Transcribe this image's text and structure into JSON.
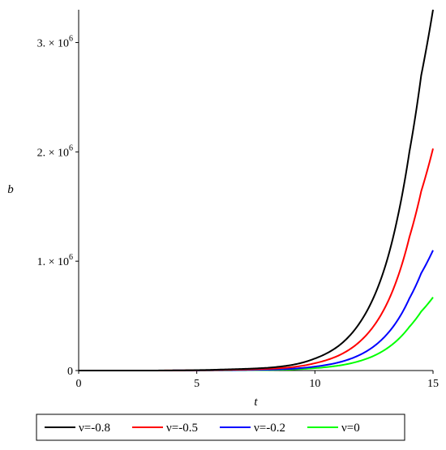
{
  "chart_data": {
    "type": "line",
    "xlabel": "t",
    "ylabel": "b",
    "xlim": [
      0,
      15
    ],
    "ylim": [
      0,
      3300000
    ],
    "x_ticks": [
      {
        "value": 0,
        "label": "0"
      },
      {
        "value": 5,
        "label": "5"
      },
      {
        "value": 10,
        "label": "10"
      },
      {
        "value": 15,
        "label": "15"
      }
    ],
    "y_ticks": [
      {
        "value": 0,
        "mantissa": "0",
        "exp": ""
      },
      {
        "value": 1000000,
        "mantissa": "1. × 10",
        "exp": "6"
      },
      {
        "value": 2000000,
        "mantissa": "2. × 10",
        "exp": "6"
      },
      {
        "value": 3000000,
        "mantissa": "3. × 10",
        "exp": "6"
      }
    ],
    "grid": false,
    "legend_position": "bottom",
    "series": [
      {
        "name": "ν=-0.8",
        "color": "#000000",
        "x": [
          0,
          2,
          4,
          6,
          8,
          9,
          10,
          11,
          12,
          13,
          13.5,
          14,
          14.5,
          15
        ],
        "y": [
          1,
          39,
          1490,
          9000,
          25000,
          50000,
          110000,
          225000,
          470000,
          970000,
          1400000,
          2000000,
          2700000,
          3300000
        ]
      },
      {
        "name": "ν=-0.5",
        "color": "#ff0000",
        "x": [
          0,
          2,
          4,
          6,
          8,
          9,
          10,
          11,
          12,
          13,
          13.5,
          14,
          14.5,
          15
        ],
        "y": [
          1,
          30,
          900,
          5500,
          15000,
          30000,
          67000,
          137000,
          285000,
          590000,
          850000,
          1220000,
          1640000,
          2030000
        ]
      },
      {
        "name": "ν=-0.2",
        "color": "#0000ff",
        "x": [
          0,
          2,
          4,
          6,
          8,
          9,
          10,
          11,
          12,
          13,
          13.5,
          14,
          14.5,
          15
        ],
        "y": [
          1,
          20,
          500,
          3000,
          8000,
          16000,
          36000,
          74000,
          154000,
          320000,
          460000,
          660000,
          890000,
          1100000
        ]
      },
      {
        "name": "ν=0",
        "color": "#00ff00",
        "x": [
          0,
          2,
          4,
          6,
          8,
          9,
          10,
          11,
          12,
          13,
          13.5,
          14,
          14.5,
          15
        ],
        "y": [
          1,
          12,
          300,
          1800,
          5000,
          10000,
          22000,
          45000,
          94000,
          195000,
          280000,
          400000,
          540000,
          670000
        ]
      }
    ]
  }
}
